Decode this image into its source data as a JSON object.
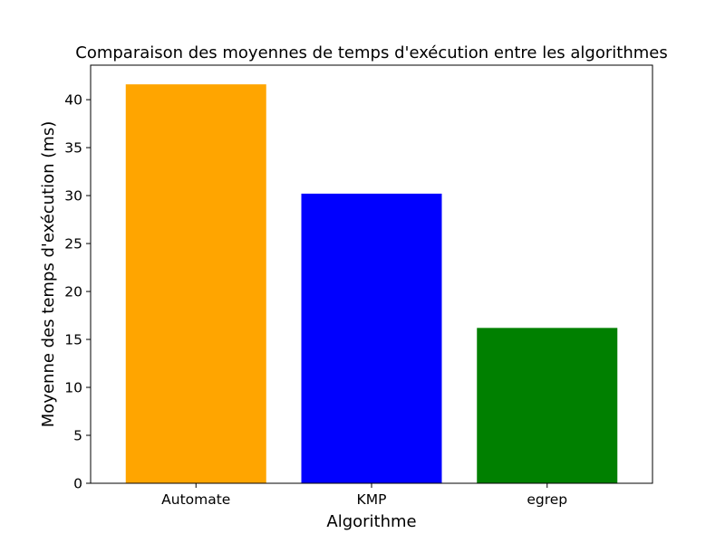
{
  "chart_data": {
    "type": "bar",
    "title": "Comparaison des moyennes de temps d'exécution entre les algorithmes",
    "xlabel": "Algorithme",
    "ylabel": "Moyenne des temps d'exécution (ms)",
    "categories": [
      "Automate",
      "KMP",
      "egrep"
    ],
    "values": [
      41.6,
      30.2,
      16.2
    ],
    "colors": [
      "#ffa500",
      "#0000ff",
      "#008000"
    ],
    "ylim": [
      0,
      43.6
    ],
    "yticks": [
      0,
      5,
      10,
      15,
      20,
      25,
      30,
      35,
      40
    ],
    "grid": false,
    "legend": false
  }
}
